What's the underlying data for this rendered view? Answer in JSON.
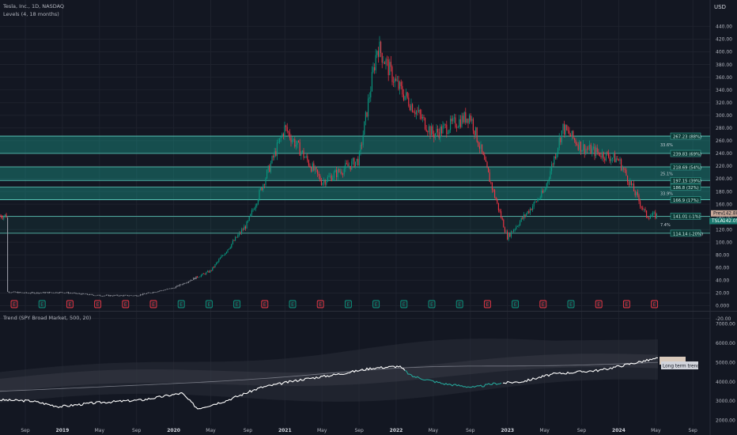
{
  "header": {
    "symbol_line": "Tesla, Inc., 1D, NASDAQ",
    "indicator_line": "Levels (4, 18 months)",
    "currency": "USD"
  },
  "price_axis": {
    "ticks": [
      "440.00",
      "420.00",
      "400.00",
      "380.00",
      "360.00",
      "340.00",
      "320.00",
      "300.00",
      "280.00",
      "260.00",
      "240.00",
      "220.00",
      "200.00",
      "180.00",
      "160.00",
      "140.00",
      "120.00",
      "100.00",
      "80.00",
      "60.00",
      "40.00",
      "20.00",
      "0.000",
      "-20.00"
    ],
    "prev_close_label": "Prev",
    "prev_close_value": "142.88",
    "last_label": "TSLA",
    "last_value": "142.05"
  },
  "levels": [
    {
      "text": "267.23 (88%)",
      "price": 267.23
    },
    {
      "text": "239.83 (69%)",
      "price": 239.83
    },
    {
      "text": "218.69 (54%)",
      "price": 218.69
    },
    {
      "text": "197.15 (39%)",
      "price": 197.15
    },
    {
      "text": "186.8 (32%)",
      "price": 186.8
    },
    {
      "text": "166.9 (17%)",
      "price": 166.9
    },
    {
      "text": "141.01 (-1%)",
      "price": 141.01
    },
    {
      "text": "114.14 (-20%)",
      "price": 114.14
    }
  ],
  "zone_percents": [
    {
      "text": "33.6%",
      "price": 253.5
    },
    {
      "text": "25.1%",
      "price": 207.9
    },
    {
      "text": "33.9%",
      "price": 176.8
    },
    {
      "text": "7.4%",
      "price": 127.6
    }
  ],
  "earnings": {
    "marker_label": "E",
    "markers": [
      {
        "index": 0,
        "color": "#f23645"
      },
      {
        "index": 1,
        "color": "#089981"
      },
      {
        "index": 2,
        "color": "#f23645"
      },
      {
        "index": 3,
        "color": "#f23645"
      },
      {
        "index": 4,
        "color": "#f23645"
      },
      {
        "index": 5,
        "color": "#f23645"
      },
      {
        "index": 6,
        "color": "#089981"
      },
      {
        "index": 7,
        "color": "#089981"
      },
      {
        "index": 8,
        "color": "#089981"
      },
      {
        "index": 9,
        "color": "#f23645"
      },
      {
        "index": 10,
        "color": "#089981"
      },
      {
        "index": 11,
        "color": "#f23645"
      },
      {
        "index": 12,
        "color": "#089981"
      },
      {
        "index": 13,
        "color": "#089981"
      },
      {
        "index": 14,
        "color": "#089981"
      },
      {
        "index": 15,
        "color": "#089981"
      },
      {
        "index": 16,
        "color": "#089981"
      },
      {
        "index": 17,
        "color": "#f23645"
      },
      {
        "index": 18,
        "color": "#089981"
      },
      {
        "index": 19,
        "color": "#f23645"
      },
      {
        "index": 20,
        "color": "#089981"
      },
      {
        "index": 21,
        "color": "#f23645"
      },
      {
        "index": 22,
        "color": "#f23645"
      },
      {
        "index": 23,
        "color": "#f23645"
      }
    ]
  },
  "trend_panel": {
    "title": "Trend (SPY Broad Market, 500, 20)",
    "ticks": [
      "7000.00",
      "6000.00",
      "5000.00",
      "4000.00",
      "3000.00",
      "2000.00"
    ],
    "label": "Long term trend"
  },
  "time_axis": {
    "ticks": [
      {
        "text": "Sep",
        "bold": false
      },
      {
        "text": "2019",
        "bold": true
      },
      {
        "text": "May",
        "bold": false
      },
      {
        "text": "Sep",
        "bold": false
      },
      {
        "text": "2020",
        "bold": true
      },
      {
        "text": "May",
        "bold": false
      },
      {
        "text": "Sep",
        "bold": false
      },
      {
        "text": "2021",
        "bold": true
      },
      {
        "text": "May",
        "bold": false
      },
      {
        "text": "Sep",
        "bold": false
      },
      {
        "text": "2022",
        "bold": true
      },
      {
        "text": "May",
        "bold": false
      },
      {
        "text": "Sep",
        "bold": false
      },
      {
        "text": "2023",
        "bold": true
      },
      {
        "text": "May",
        "bold": false
      },
      {
        "text": "Sep",
        "bold": false
      },
      {
        "text": "2024",
        "bold": true
      },
      {
        "text": "May",
        "bold": false
      },
      {
        "text": "Sep",
        "bold": false
      }
    ]
  },
  "colors": {
    "background": "#131722",
    "zone": "#1a9c8c",
    "up": "#089981",
    "down": "#f23645",
    "trend_line": "#ffffff",
    "trend_line_down": "#26a69a"
  },
  "chart_data": {
    "type": "line",
    "series": [
      {
        "name": "",
        "x": [
          "2018-07",
          "2018-09",
          "2019-01",
          "2019-05",
          "2019-09",
          "2020-01",
          "2020-05",
          "2020-09",
          "2021-01",
          "2021-05",
          "2021-09",
          "2021-11",
          "2022-01",
          "2022-05",
          "2022-09",
          "2023-01",
          "2023-05",
          "2023-07",
          "2023-09",
          "2024-01",
          "2024-04"
        ],
        "y": [
          22,
          20,
          21,
          16,
          16,
          28,
          55,
          130,
          280,
          195,
          230,
          410,
          350,
          270,
          300,
          108,
          180,
          280,
          250,
          230,
          142
        ]
      }
    ],
    "ylim": [
      -20,
      440
    ],
    "xlabel": "",
    "ylabel": ""
  }
}
